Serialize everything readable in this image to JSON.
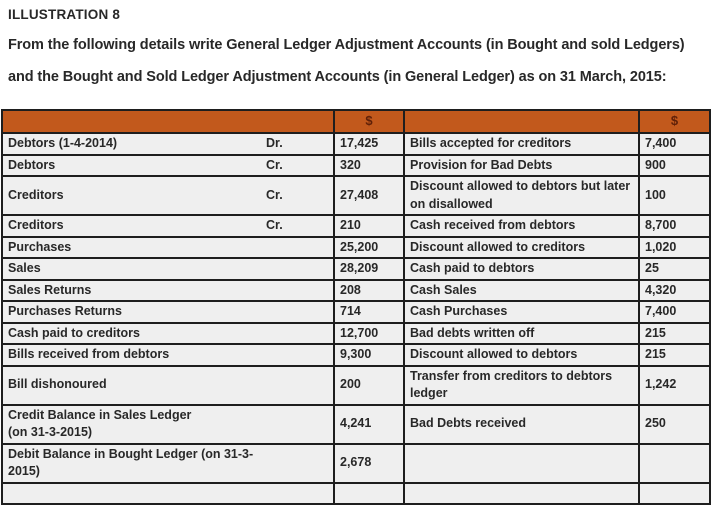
{
  "page": {
    "title": "ILLUSTRATION 8",
    "intro_line1": "From the following details write General Ledger Adjustment Accounts (in Bought and sold Ledgers)",
    "intro_line2": "and the Bought and Sold Ledger Adjustment Accounts (in General Ledger) as on 31 March, 2015:"
  },
  "table": {
    "header": {
      "left_currency": "$",
      "right_currency": "$"
    },
    "rows": [
      {
        "left_label": "Debtors (1-4-2014)",
        "drcr": "Dr.",
        "left_amount": "17,425",
        "right_label": "Bills accepted for creditors",
        "right_amount": "7,400"
      },
      {
        "left_label": "Debtors",
        "drcr": "Cr.",
        "left_amount": "320",
        "right_label": "Provision for Bad Debts",
        "right_amount": "900"
      },
      {
        "left_label": "Creditors",
        "drcr": "Cr.",
        "left_amount": "27,408",
        "right_label": "Discount allowed to debtors but later on disallowed",
        "right_amount": "100"
      },
      {
        "left_label": "Creditors",
        "drcr": "Cr.",
        "left_amount": "210",
        "right_label": "Cash received from debtors",
        "right_amount": "8,700"
      },
      {
        "left_label": "Purchases",
        "drcr": "",
        "left_amount": "25,200",
        "right_label": "Discount allowed to creditors",
        "right_amount": "1,020"
      },
      {
        "left_label": "Sales",
        "drcr": "",
        "left_amount": "28,209",
        "right_label": "Cash paid to debtors",
        "right_amount": "25"
      },
      {
        "left_label": "Sales Returns",
        "drcr": "",
        "left_amount": "208",
        "right_label": "Cash Sales",
        "right_amount": "4,320"
      },
      {
        "left_label": "Purchases Returns",
        "drcr": "",
        "left_amount": "714",
        "right_label": "Cash Purchases",
        "right_amount": "7,400"
      },
      {
        "left_label": "Cash paid to creditors",
        "drcr": "",
        "left_amount": "12,700",
        "right_label": "Bad debts written off",
        "right_amount": "215"
      },
      {
        "left_label": "Bills received from debtors",
        "drcr": "",
        "left_amount": "9,300",
        "right_label": "Discount allowed to debtors",
        "right_amount": "215"
      },
      {
        "left_label": "Bill dishonoured",
        "drcr": "",
        "left_amount": "200",
        "right_label": "Transfer from creditors to debtors ledger",
        "right_amount": "1,242"
      },
      {
        "left_label": "Credit Balance in Sales Ledger\n(on 31-3-2015)",
        "drcr": "",
        "left_amount": "4,241",
        "right_label": "Bad Debts received",
        "right_amount": "250"
      },
      {
        "left_label": "Debit Balance in Bought Ledger (on 31-3-2015)",
        "drcr": "",
        "left_amount": "2,678",
        "right_label": "",
        "right_amount": ""
      },
      {
        "left_label": "",
        "drcr": "",
        "left_amount": "",
        "right_label": "",
        "right_amount": ""
      }
    ]
  },
  "colors": {
    "header_bg": "#c2591c",
    "currency": "#5f2008",
    "row_bg": "#efefef",
    "border": "#1e1e1e",
    "text": "#282828",
    "page_bg": "#ffffff"
  }
}
